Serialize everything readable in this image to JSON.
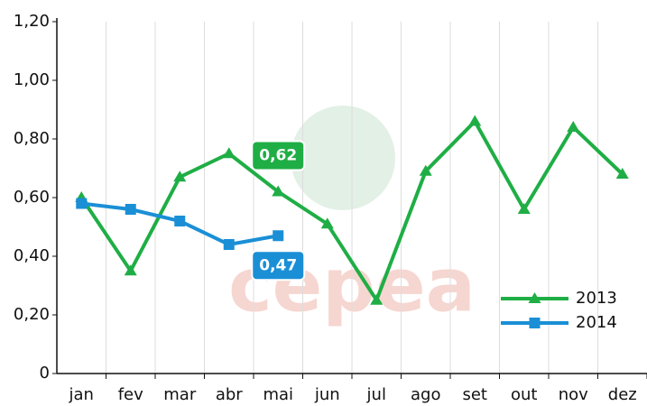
{
  "chart_data": {
    "type": "line",
    "categories": [
      "jan",
      "fev",
      "mar",
      "abr",
      "mai",
      "jun",
      "jul",
      "ago",
      "set",
      "out",
      "nov",
      "dez"
    ],
    "series": [
      {
        "name": "2013",
        "color": "#1fae45",
        "marker": "triangle",
        "values": [
          0.6,
          0.35,
          0.67,
          0.75,
          0.62,
          0.51,
          0.25,
          0.69,
          0.86,
          0.56,
          0.84,
          0.68
        ],
        "value_labels": [
          null,
          null,
          null,
          null,
          "0,62",
          null,
          null,
          null,
          null,
          null,
          null,
          null
        ]
      },
      {
        "name": "2014",
        "color": "#1a8fd6",
        "marker": "square",
        "values": [
          0.58,
          0.56,
          0.52,
          0.44,
          0.47,
          null,
          null,
          null,
          null,
          null,
          null,
          null
        ],
        "value_labels": [
          null,
          null,
          null,
          null,
          "0,47",
          null,
          null,
          null,
          null,
          null,
          null,
          null
        ]
      }
    ],
    "ylim": [
      0,
      1.2
    ],
    "yticks": [
      0,
      {
        "value": 0.2,
        "label": "0,20"
      },
      {
        "value": 0.4,
        "label": "0,40"
      },
      {
        "value": 0.6,
        "label": "0,60"
      },
      {
        "value": 0.8,
        "label": "0,80"
      },
      {
        "value": 1.0,
        "label": "1,00"
      },
      {
        "value": 1.2,
        "label": "1,20"
      }
    ],
    "grid": true,
    "legend": "lower right",
    "watermark": "cepea"
  }
}
